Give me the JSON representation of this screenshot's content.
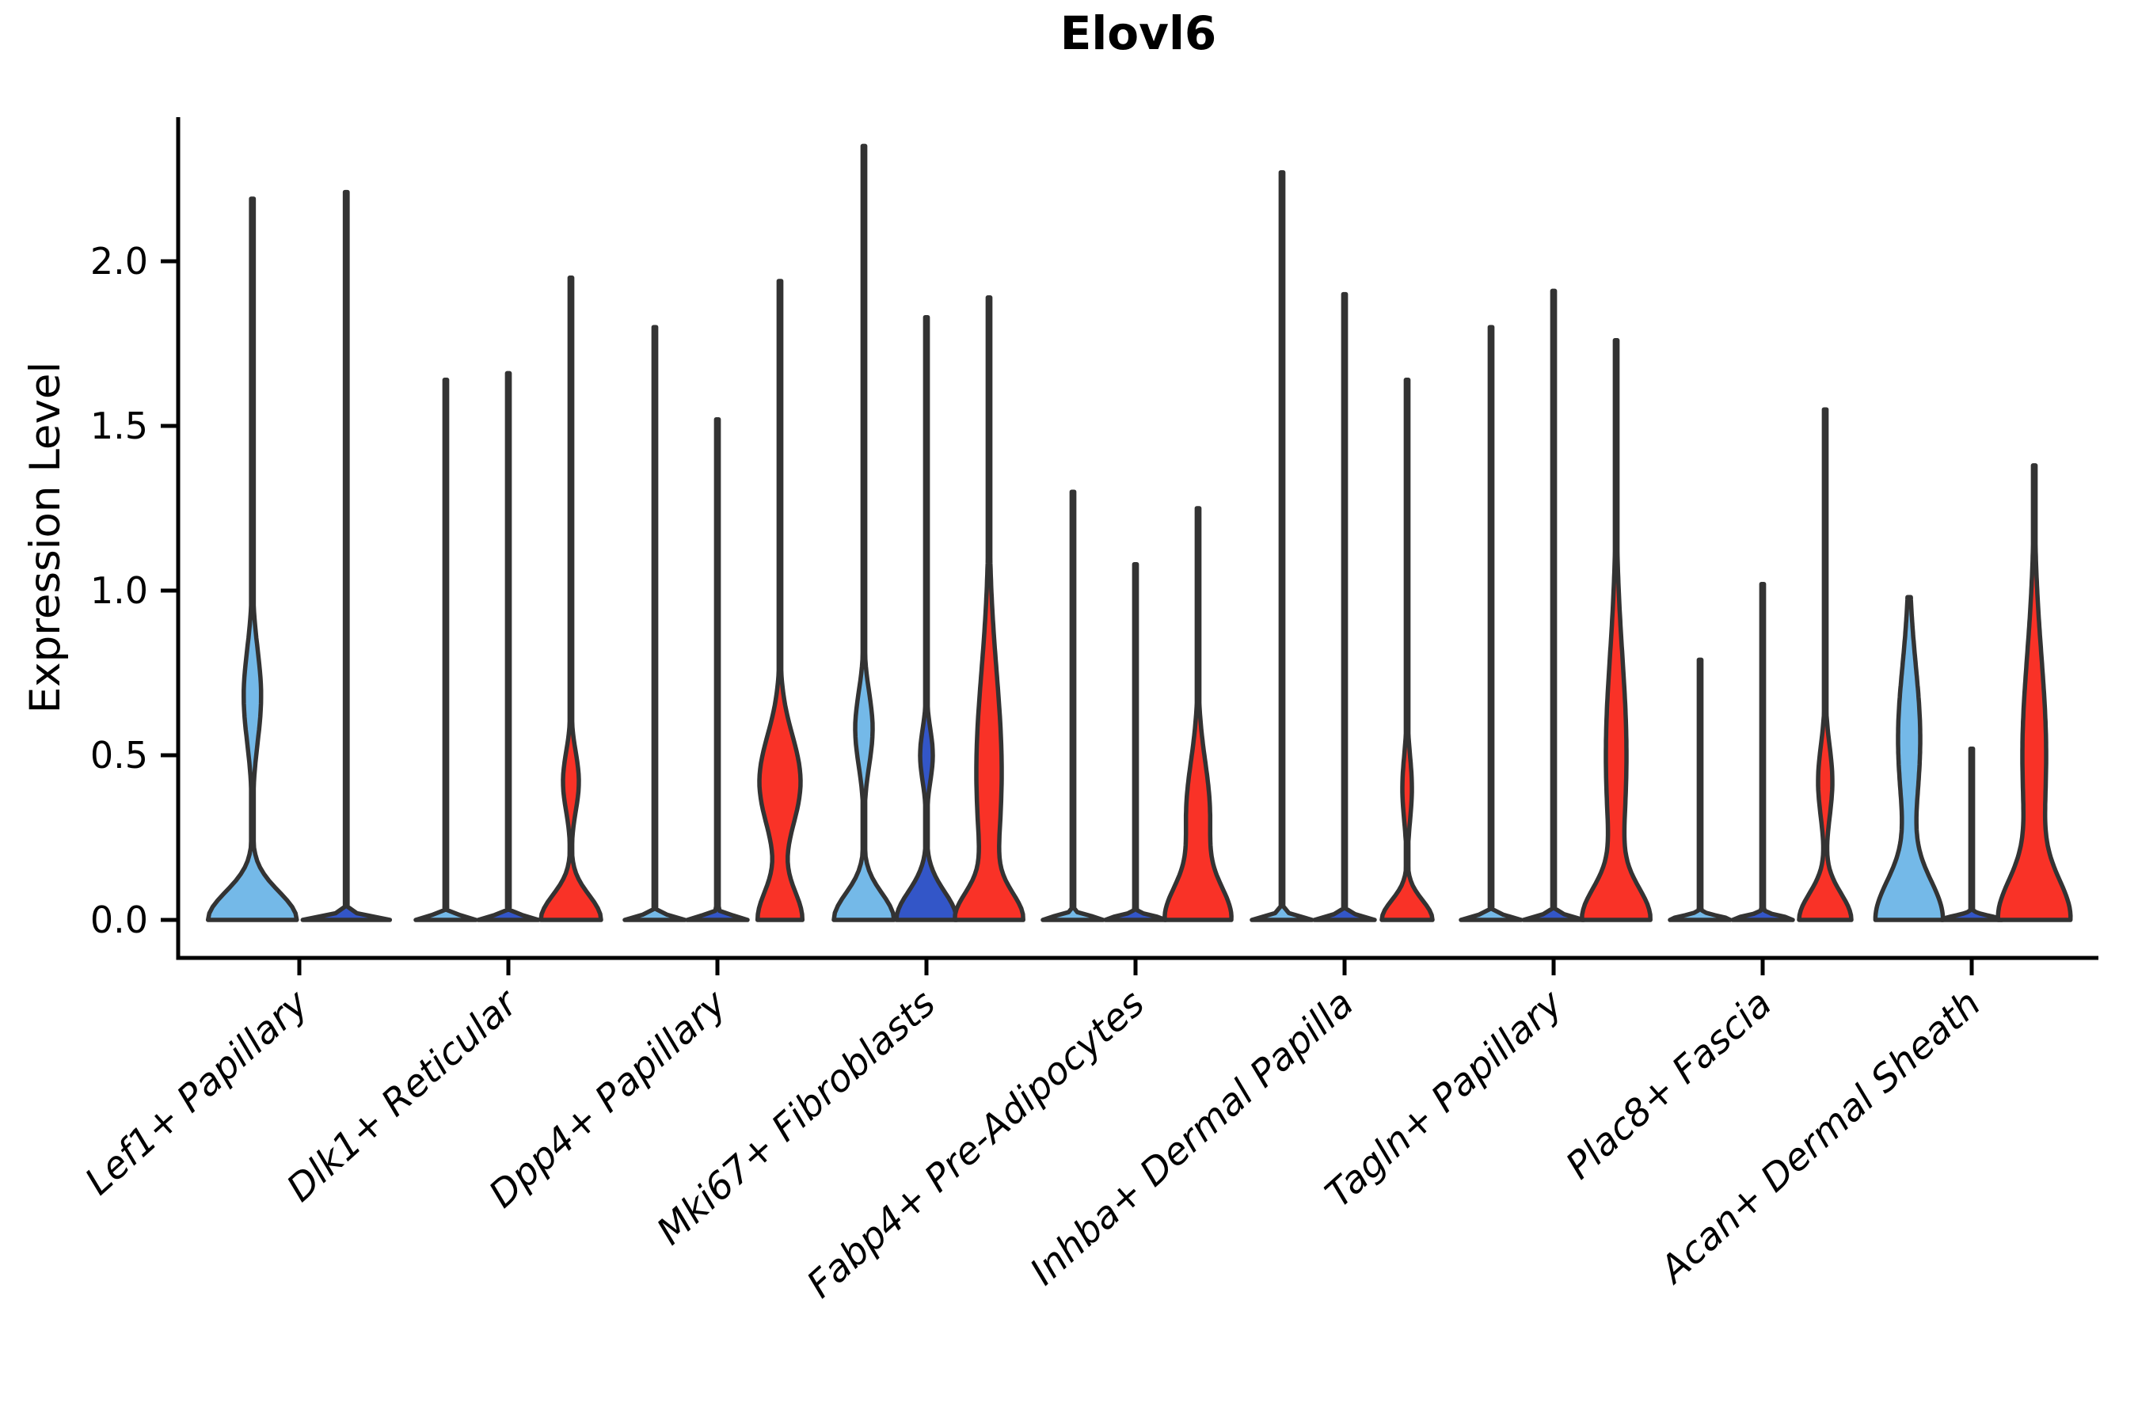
{
  "figure": {
    "title": "Elovl6",
    "ylabel": "Expression Level",
    "ytick_labels": [
      "0.0",
      "0.5",
      "1.0",
      "1.5",
      "2.0"
    ]
  },
  "chart_data": {
    "type": "violin",
    "title": "Elovl6",
    "xlabel": "",
    "ylabel": "Expression Level",
    "ylim": [
      0,
      2.45
    ],
    "yticks": [
      0.0,
      0.5,
      1.0,
      1.5,
      2.0
    ],
    "grid": false,
    "legend": "none",
    "split_colors": {
      "light_blue": "#74B9E8",
      "dark_blue": "#3356C8",
      "red": "#F93227"
    },
    "outline_color": "#333333",
    "categories": [
      "Lef1+ Papillary",
      "Dlk1+ Reticular",
      "Dpp4+ Papillary",
      "Mki67+ Fibroblasts",
      "Fabp4+ Pre-Adipocytes",
      "Inhba+ Dermal Papilla",
      "Tagln+ Papillary",
      "Plac8+ Fascia",
      "Acan+ Dermal Sheath"
    ],
    "groups": [
      {
        "category": "Lef1+ Papillary",
        "violins": [
          {
            "split": "light_blue",
            "color": "#74B9E8",
            "max_expression": 2.19,
            "density": [
              [
                0,
                0.085,
                56
              ],
              [
                0.68,
                0.14,
                11
              ]
            ]
          },
          {
            "split": "dark_blue",
            "color": "#3356C8",
            "max_expression": 2.21,
            "density": [
              [
                0,
                0.012,
                55
              ]
            ]
          }
        ]
      },
      {
        "category": "Dlk1+ Reticular",
        "violins": [
          {
            "split": "light_blue",
            "color": "#74B9E8",
            "max_expression": 1.64,
            "density": [
              [
                0,
                0.012,
                38
              ]
            ]
          },
          {
            "split": "dark_blue",
            "color": "#3356C8",
            "max_expression": 1.66,
            "density": [
              [
                0,
                0.012,
                38
              ]
            ]
          },
          {
            "split": "red",
            "color": "#F93227",
            "max_expression": 1.95,
            "density": [
              [
                0,
                0.075,
                38
              ],
              [
                0.42,
                0.09,
                10
              ]
            ]
          }
        ]
      },
      {
        "category": "Dpp4+ Papillary",
        "violins": [
          {
            "split": "light_blue",
            "color": "#74B9E8",
            "max_expression": 1.8,
            "density": [
              [
                0,
                0.012,
                38
              ]
            ]
          },
          {
            "split": "dark_blue",
            "color": "#3356C8",
            "max_expression": 1.52,
            "density": [
              [
                0,
                0.012,
                38
              ]
            ]
          },
          {
            "split": "red",
            "color": "#F93227",
            "max_expression": 1.94,
            "density": [
              [
                0,
                0.09,
                28
              ],
              [
                0.42,
                0.14,
                26
              ]
            ]
          }
        ]
      },
      {
        "category": "Mki67+ Fibroblasts",
        "violins": [
          {
            "split": "light_blue",
            "color": "#74B9E8",
            "max_expression": 2.35,
            "density": [
              [
                0,
                0.08,
                38
              ],
              [
                0.58,
                0.11,
                11
              ]
            ]
          },
          {
            "split": "dark_blue",
            "color": "#3356C8",
            "max_expression": 1.83,
            "density": [
              [
                0,
                0.085,
                38
              ],
              [
                0.5,
                0.08,
                8
              ]
            ]
          },
          {
            "split": "red",
            "color": "#F93227",
            "max_expression": 1.89,
            "density": [
              [
                0,
                0.08,
                38
              ],
              [
                0.45,
                0.3,
                16
              ]
            ]
          }
        ]
      },
      {
        "category": "Fabp4+ Pre-Adipocytes",
        "violins": [
          {
            "split": "light_blue",
            "color": "#74B9E8",
            "max_expression": 1.3,
            "density": [
              [
                0,
                0.012,
                38
              ]
            ]
          },
          {
            "split": "dark_blue",
            "color": "#3356C8",
            "max_expression": 1.08,
            "density": [
              [
                0,
                0.012,
                38
              ]
            ]
          },
          {
            "split": "red",
            "color": "#F93227",
            "max_expression": 1.25,
            "density": [
              [
                0,
                0.1,
                40
              ],
              [
                0.32,
                0.16,
                15
              ]
            ]
          }
        ]
      },
      {
        "category": "Inhba+ Dermal Papilla",
        "violins": [
          {
            "split": "light_blue",
            "color": "#74B9E8",
            "max_expression": 2.27,
            "density": [
              [
                0,
                0.012,
                38
              ]
            ]
          },
          {
            "split": "dark_blue",
            "color": "#3356C8",
            "max_expression": 1.9,
            "density": [
              [
                0,
                0.012,
                38
              ]
            ]
          },
          {
            "split": "red",
            "color": "#F93227",
            "max_expression": 1.64,
            "density": [
              [
                0,
                0.06,
                32
              ],
              [
                0.4,
                0.1,
                6
              ]
            ]
          }
        ]
      },
      {
        "category": "Tagln+ Papillary",
        "violins": [
          {
            "split": "light_blue",
            "color": "#74B9E8",
            "max_expression": 1.8,
            "density": [
              [
                0,
                0.012,
                38
              ]
            ]
          },
          {
            "split": "dark_blue",
            "color": "#3356C8",
            "max_expression": 1.91,
            "density": [
              [
                0,
                0.012,
                38
              ]
            ]
          },
          {
            "split": "red",
            "color": "#F93227",
            "max_expression": 1.76,
            "density": [
              [
                0,
                0.095,
                40
              ],
              [
                0.5,
                0.3,
                13
              ]
            ]
          }
        ]
      },
      {
        "category": "Plac8+ Fascia",
        "violins": [
          {
            "split": "light_blue",
            "color": "#74B9E8",
            "max_expression": 0.79,
            "density": [
              [
                0,
                0.012,
                38
              ]
            ]
          },
          {
            "split": "dark_blue",
            "color": "#3356C8",
            "max_expression": 1.02,
            "density": [
              [
                0,
                0.012,
                38
              ]
            ]
          },
          {
            "split": "red",
            "color": "#F93227",
            "max_expression": 1.55,
            "density": [
              [
                0,
                0.08,
                33
              ],
              [
                0.42,
                0.11,
                9
              ]
            ]
          }
        ]
      },
      {
        "category": "Acan+ Dermal Sheath",
        "violins": [
          {
            "split": "light_blue",
            "color": "#74B9E8",
            "max_expression": 0.98,
            "density": [
              [
                0,
                0.12,
                42
              ],
              [
                0.55,
                0.22,
                14
              ]
            ]
          },
          {
            "split": "dark_blue",
            "color": "#3356C8",
            "max_expression": 0.52,
            "density": [
              [
                0,
                0.012,
                38
              ]
            ]
          },
          {
            "split": "red",
            "color": "#F93227",
            "max_expression": 1.38,
            "density": [
              [
                0,
                0.12,
                42
              ],
              [
                0.5,
                0.3,
                15
              ]
            ]
          }
        ]
      }
    ]
  }
}
